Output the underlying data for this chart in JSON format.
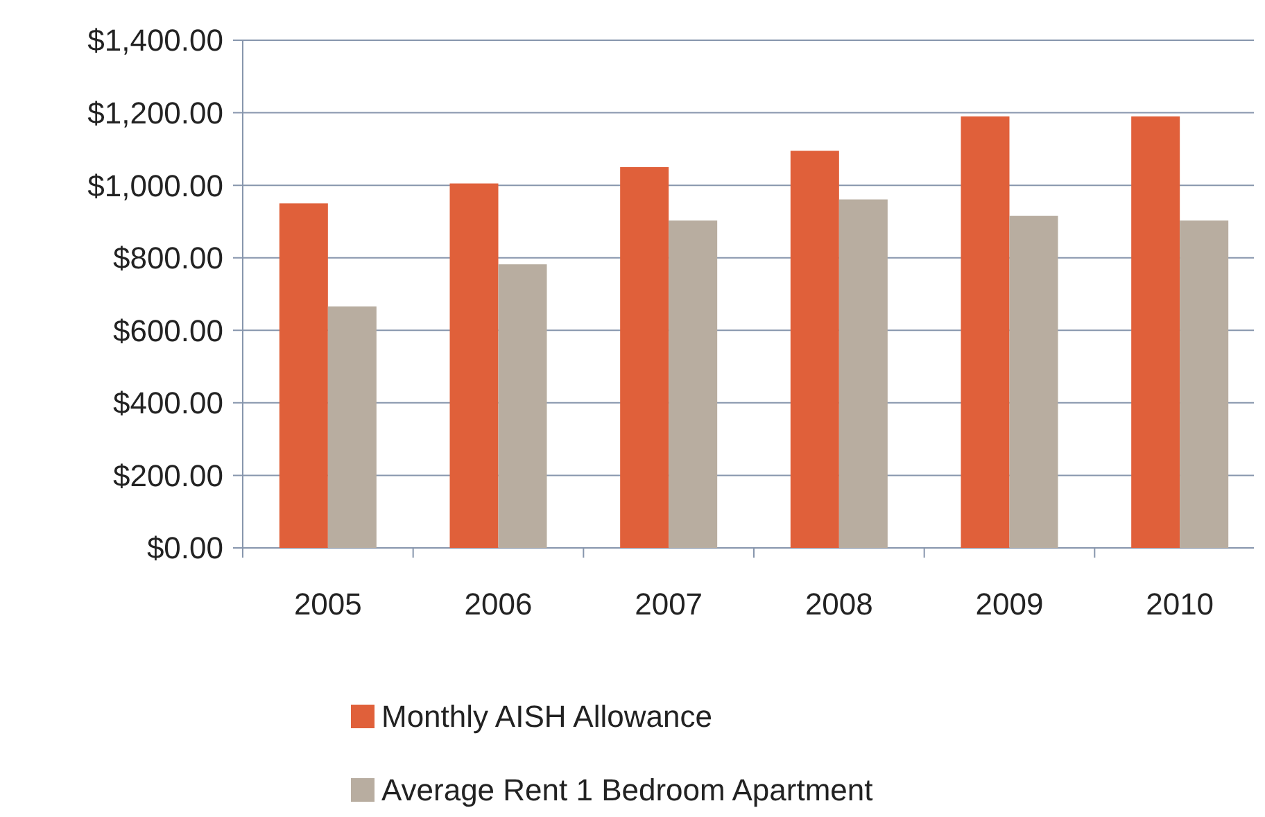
{
  "chart_data": {
    "type": "bar",
    "categories": [
      "2005",
      "2006",
      "2007",
      "2008",
      "2009",
      "2010"
    ],
    "series": [
      {
        "name": "Monthly AISH Allowance",
        "color": "#e0603a",
        "values": [
          950,
          1005,
          1050,
          1095,
          1190,
          1190
        ]
      },
      {
        "name": "Average Rent 1 Bedroom Apartment",
        "color": "#b8ada0",
        "values": [
          666,
          782,
          903,
          961,
          916,
          903
        ]
      }
    ],
    "ylim": [
      0,
      1400
    ],
    "yticks": [
      {
        "value": 0,
        "label": "$0.00"
      },
      {
        "value": 200,
        "label": "$200.00"
      },
      {
        "value": 400,
        "label": "$400.00"
      },
      {
        "value": 600,
        "label": "$600.00"
      },
      {
        "value": 800,
        "label": "$800.00"
      },
      {
        "value": 1000,
        "label": "$1,000.00"
      },
      {
        "value": 1200,
        "label": "$1,200.00"
      },
      {
        "value": 1400,
        "label": "$1,400.00"
      }
    ],
    "grid": "y",
    "legend": "bottom"
  }
}
